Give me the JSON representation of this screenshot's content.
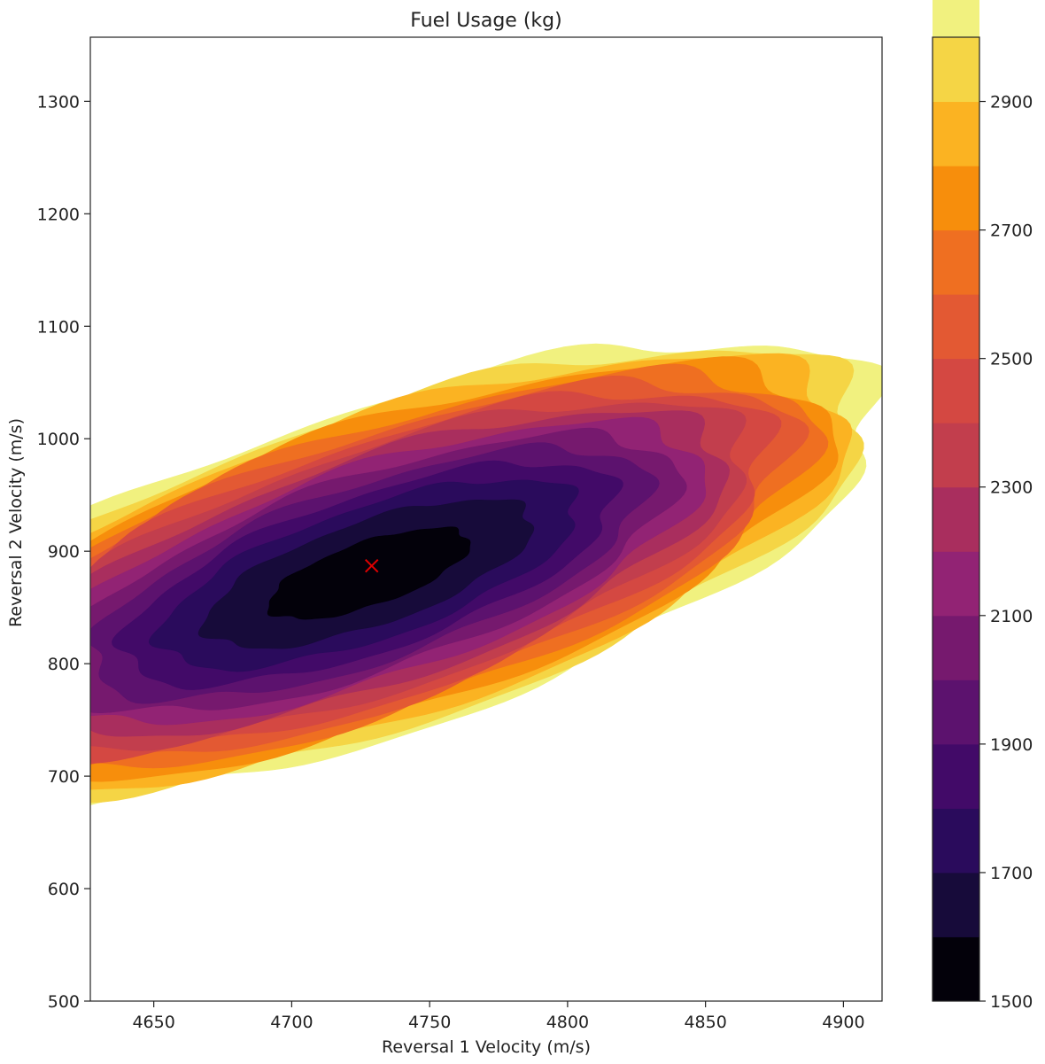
{
  "chart_data": {
    "type": "contourf",
    "title": "Fuel Usage (kg)",
    "xlabel": "Reversal 1 Velocity (m/s)",
    "ylabel": "Reversal 2 Velocity (m/s)",
    "xlim": [
      4627,
      4914
    ],
    "ylim": [
      500,
      1357
    ],
    "xticks": [
      4650,
      4700,
      4750,
      4800,
      4850,
      4900
    ],
    "yticks": [
      500,
      600,
      700,
      800,
      900,
      1000,
      1100,
      1200,
      1300
    ],
    "colormap": "inferno",
    "colorbar": {
      "vmin": 1500,
      "vmax": 3000,
      "level_step": 100,
      "ticks": [
        1500,
        1700,
        1900,
        2100,
        2300,
        2500,
        2700,
        2900
      ]
    },
    "level_colors": [
      "#03010a",
      "#170b3a",
      "#2a0b5c",
      "#420a68",
      "#5c126e",
      "#76196e",
      "#922374",
      "#a92e5e",
      "#c23e4d",
      "#d44842",
      "#e35933",
      "#ef6f21",
      "#f78e0c",
      "#fbb322",
      "#f5d545",
      "#f1f17f"
    ],
    "surface_model": {
      "center": [
        4728,
        880
      ],
      "minimum_value": 1540,
      "major_axis_angle_deg": 49.3,
      "major_axis_scale": 246,
      "minor_axis_scale": 107
    },
    "minimum_marker": {
      "x": 4729,
      "y": 887,
      "symbol": "x",
      "color": "#e00000"
    }
  }
}
